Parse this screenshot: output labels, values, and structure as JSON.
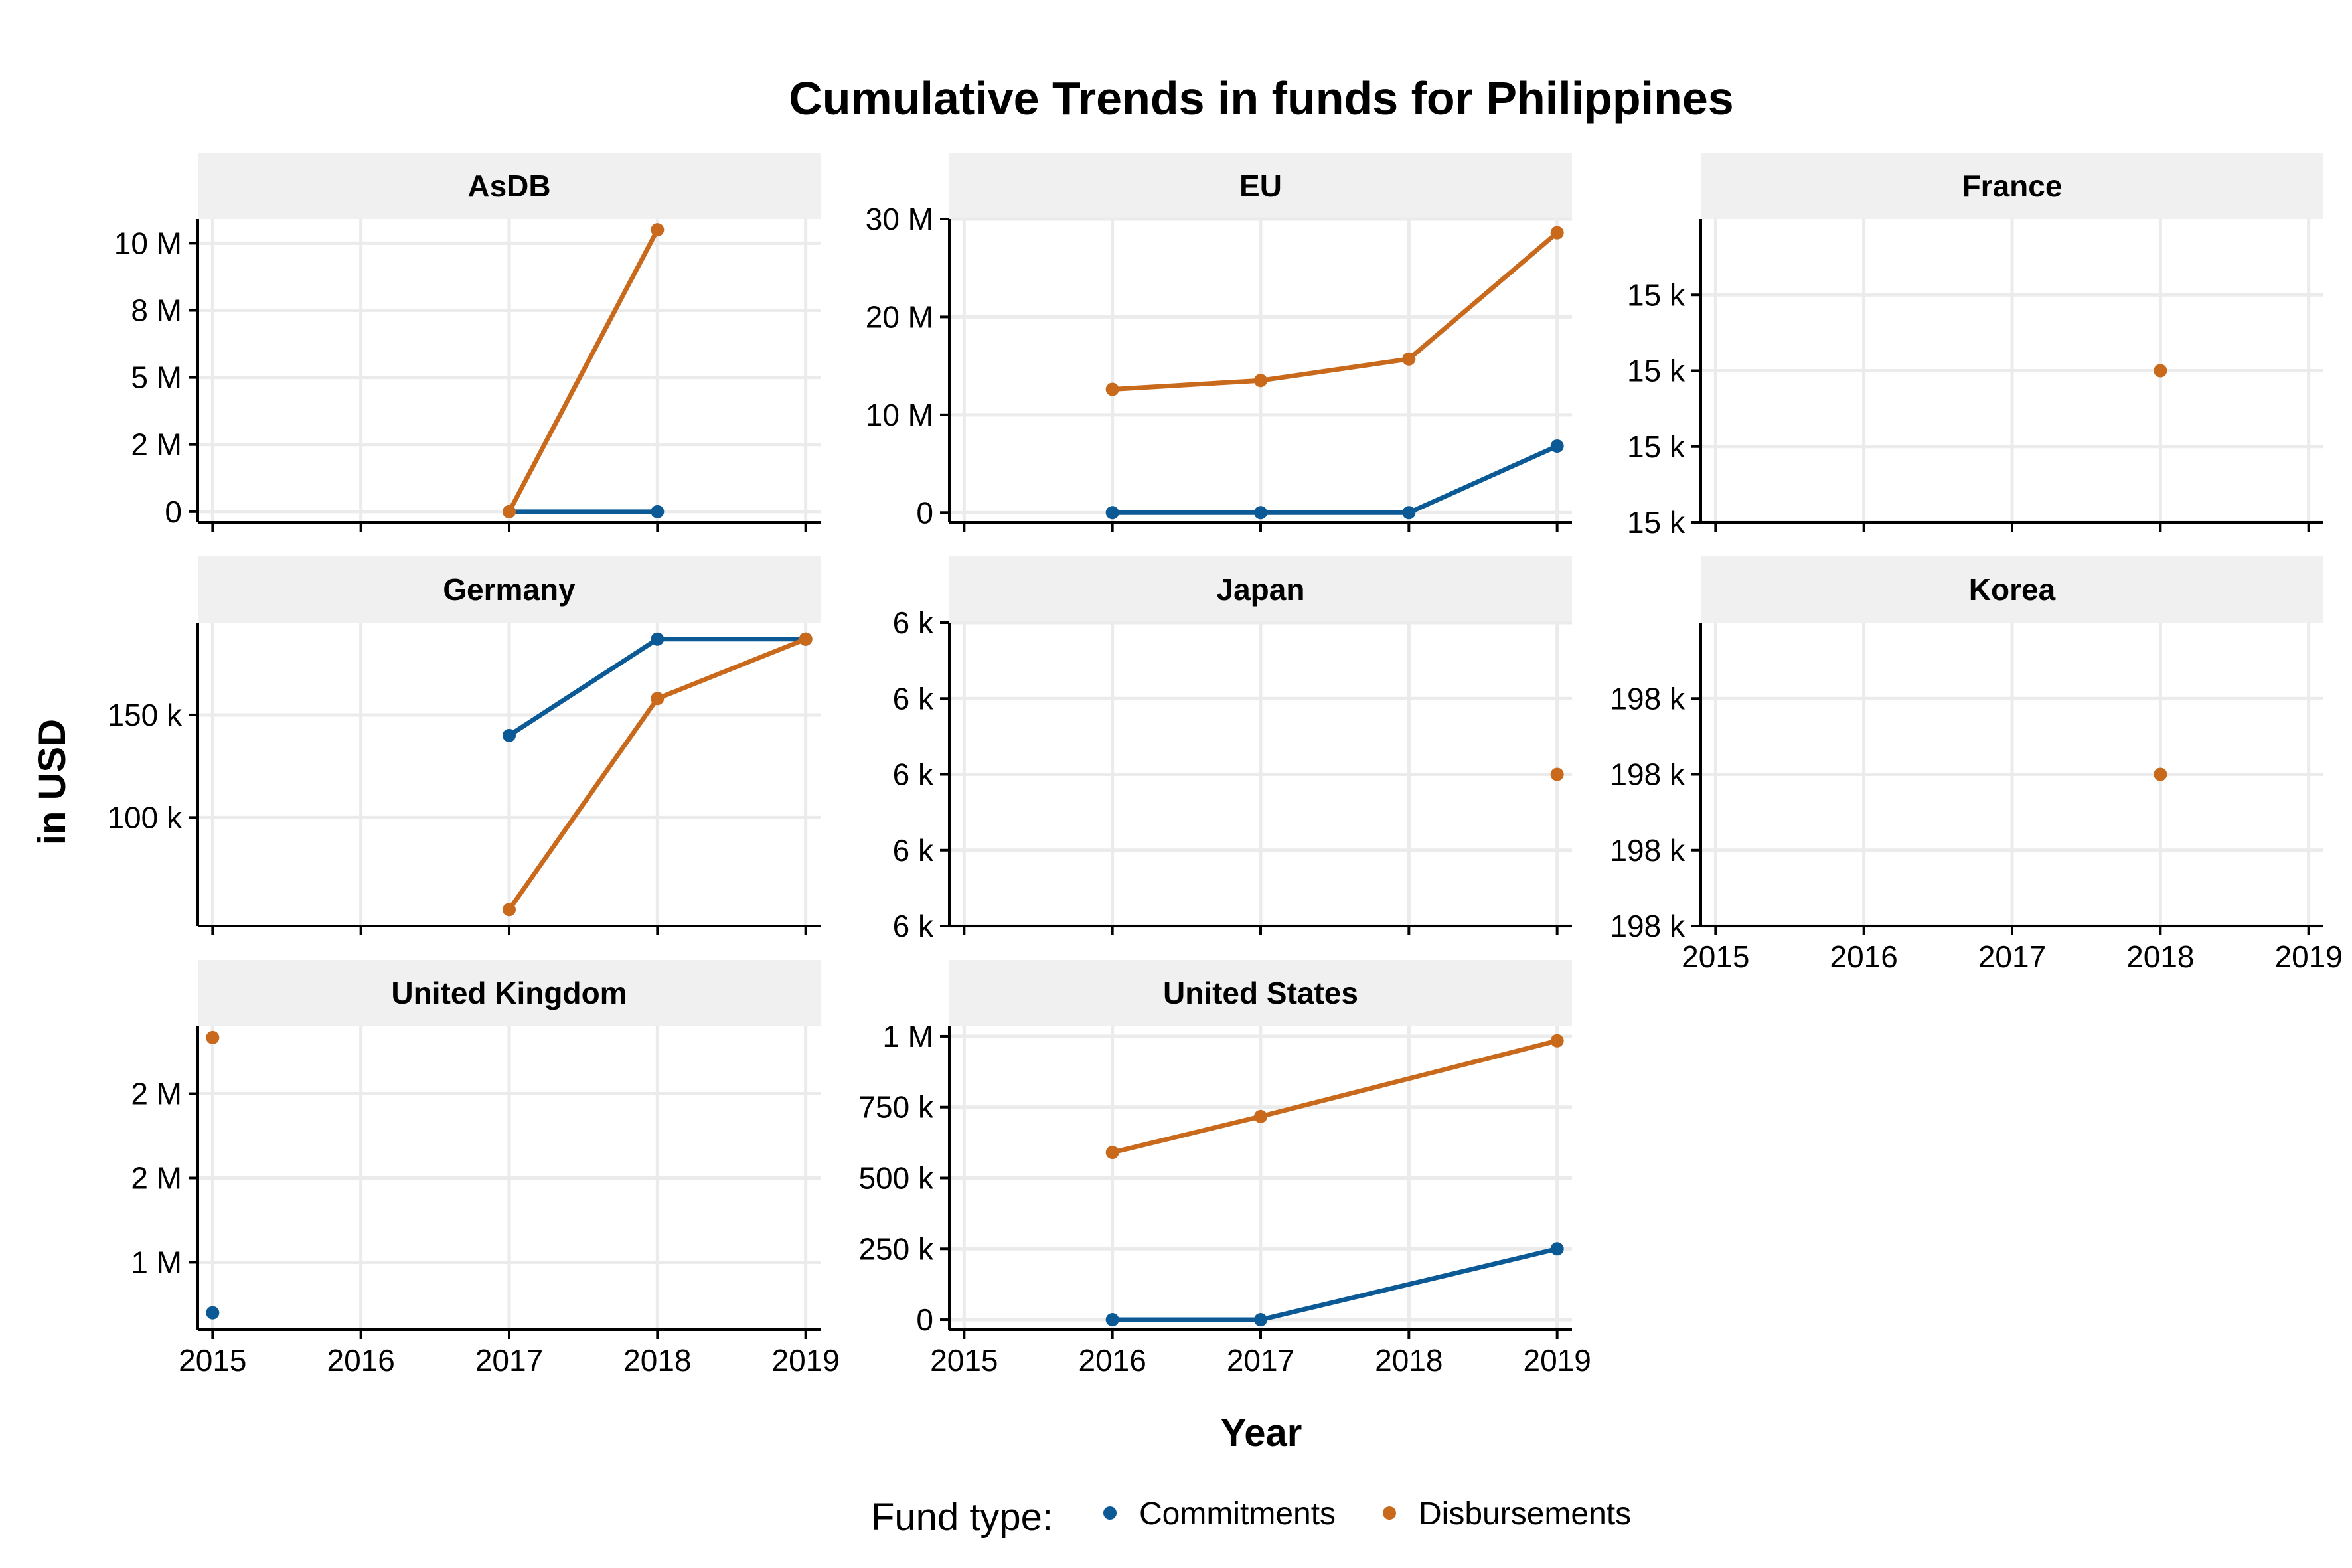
{
  "chart_data": {
    "type": "line",
    "title": "Cumulative Trends in funds for Philippines",
    "xlabel": "Year",
    "ylabel": "in USD",
    "legend": {
      "title": "Fund type:",
      "position": "bottom",
      "entries": [
        "Commitments",
        "Disbursements"
      ]
    },
    "colors": {
      "Commitments": "#0b5a96",
      "Disbursements": "#c8691c",
      "grid": "#ebebeb",
      "strip": "#f0f0f0",
      "axis": "#000000"
    },
    "x_ticks": [
      2015,
      2016,
      2017,
      2018,
      2019
    ],
    "xlim": [
      2014.9,
      2019.1
    ],
    "grid": true,
    "panels": [
      {
        "name": "AsDB",
        "ylim": [
          -400000,
          10900000
        ],
        "y_ticks": [
          {
            "value": 0,
            "label": "0"
          },
          {
            "value": 2500000,
            "label": "2 M"
          },
          {
            "value": 5000000,
            "label": "5 M"
          },
          {
            "value": 7500000,
            "label": "8 M"
          },
          {
            "value": 10000000,
            "label": "10 M"
          }
        ],
        "show_x_labels": false,
        "series": [
          {
            "type": "Commitments",
            "x": [
              2017,
              2018
            ],
            "y": [
              0,
              0
            ]
          },
          {
            "type": "Disbursements",
            "x": [
              2017,
              2018
            ],
            "y": [
              0,
              10500000
            ]
          }
        ]
      },
      {
        "name": "EU",
        "ylim": [
          -1000000,
          30000000
        ],
        "y_ticks": [
          {
            "value": 0,
            "label": "0"
          },
          {
            "value": 10000000,
            "label": "10 M"
          },
          {
            "value": 20000000,
            "label": "20 M"
          },
          {
            "value": 30000000,
            "label": "30 M"
          }
        ],
        "show_x_labels": false,
        "series": [
          {
            "type": "Commitments",
            "x": [
              2016,
              2017,
              2018,
              2019
            ],
            "y": [
              0,
              0,
              0,
              6800000
            ]
          },
          {
            "type": "Disbursements",
            "x": [
              2016,
              2017,
              2018,
              2019
            ],
            "y": [
              12600000,
              13500000,
              15700000,
              28600000
            ]
          }
        ]
      },
      {
        "name": "France",
        "ylim": [
          14750,
          15250
        ],
        "y_ticks": [
          {
            "value": 14750,
            "label": "15 k"
          },
          {
            "value": 14875,
            "label": "15 k"
          },
          {
            "value": 15000,
            "label": "15 k"
          },
          {
            "value": 15125,
            "label": "15 k"
          }
        ],
        "show_x_labels": false,
        "series": [
          {
            "type": "Disbursements",
            "x": [
              2018
            ],
            "y": [
              15000
            ]
          }
        ]
      },
      {
        "name": "Germany",
        "ylim": [
          47000,
          195000
        ],
        "y_ticks": [
          {
            "value": 100000,
            "label": "100 k"
          },
          {
            "value": 150000,
            "label": "150 k"
          }
        ],
        "show_x_labels": false,
        "series": [
          {
            "type": "Commitments",
            "x": [
              2017,
              2018,
              2019
            ],
            "y": [
              140000,
              187000,
              187000
            ]
          },
          {
            "type": "Disbursements",
            "x": [
              2017,
              2018,
              2019
            ],
            "y": [
              55000,
              158000,
              187000
            ]
          }
        ]
      },
      {
        "name": "Japan",
        "ylim": [
          5900,
          6100
        ],
        "y_ticks": [
          {
            "value": 5900,
            "label": "6 k"
          },
          {
            "value": 5950,
            "label": "6 k"
          },
          {
            "value": 6000,
            "label": "6 k"
          },
          {
            "value": 6050,
            "label": "6 k"
          },
          {
            "value": 6100,
            "label": "6 k"
          }
        ],
        "show_x_labels": false,
        "series": [
          {
            "type": "Disbursements",
            "x": [
              2019
            ],
            "y": [
              6000
            ]
          }
        ]
      },
      {
        "name": "Korea",
        "ylim": [
          197900,
          198100
        ],
        "y_ticks": [
          {
            "value": 197900,
            "label": "198 k"
          },
          {
            "value": 197950,
            "label": "198 k"
          },
          {
            "value": 198000,
            "label": "198 k"
          },
          {
            "value": 198050,
            "label": "198 k"
          }
        ],
        "show_x_labels": true,
        "series": [
          {
            "type": "Disbursements",
            "x": [
              2018
            ],
            "y": [
              198000
            ]
          }
        ]
      },
      {
        "name": "United Kingdom",
        "ylim": [
          400000,
          3100000
        ],
        "y_ticks": [
          {
            "value": 1000000,
            "label": "1 M"
          },
          {
            "value": 1750000,
            "label": "2 M"
          },
          {
            "value": 2500000,
            "label": "2 M"
          }
        ],
        "show_x_labels": true,
        "series": [
          {
            "type": "Commitments",
            "x": [
              2015
            ],
            "y": [
              550000
            ]
          },
          {
            "type": "Disbursements",
            "x": [
              2015
            ],
            "y": [
              3000000
            ]
          }
        ]
      },
      {
        "name": "United States",
        "ylim": [
          -35000,
          1035000
        ],
        "y_ticks": [
          {
            "value": 0,
            "label": "0"
          },
          {
            "value": 250000,
            "label": "250 k"
          },
          {
            "value": 500000,
            "label": "500 k"
          },
          {
            "value": 750000,
            "label": "750 k"
          },
          {
            "value": 1000000,
            "label": "1 M"
          }
        ],
        "show_x_labels": true,
        "series": [
          {
            "type": "Commitments",
            "x": [
              2016,
              2017,
              2019
            ],
            "y": [
              0,
              0,
              250000
            ]
          },
          {
            "type": "Disbursements",
            "x": [
              2016,
              2017,
              2019
            ],
            "y": [
              590000,
              717000,
              984000
            ]
          }
        ]
      }
    ]
  }
}
